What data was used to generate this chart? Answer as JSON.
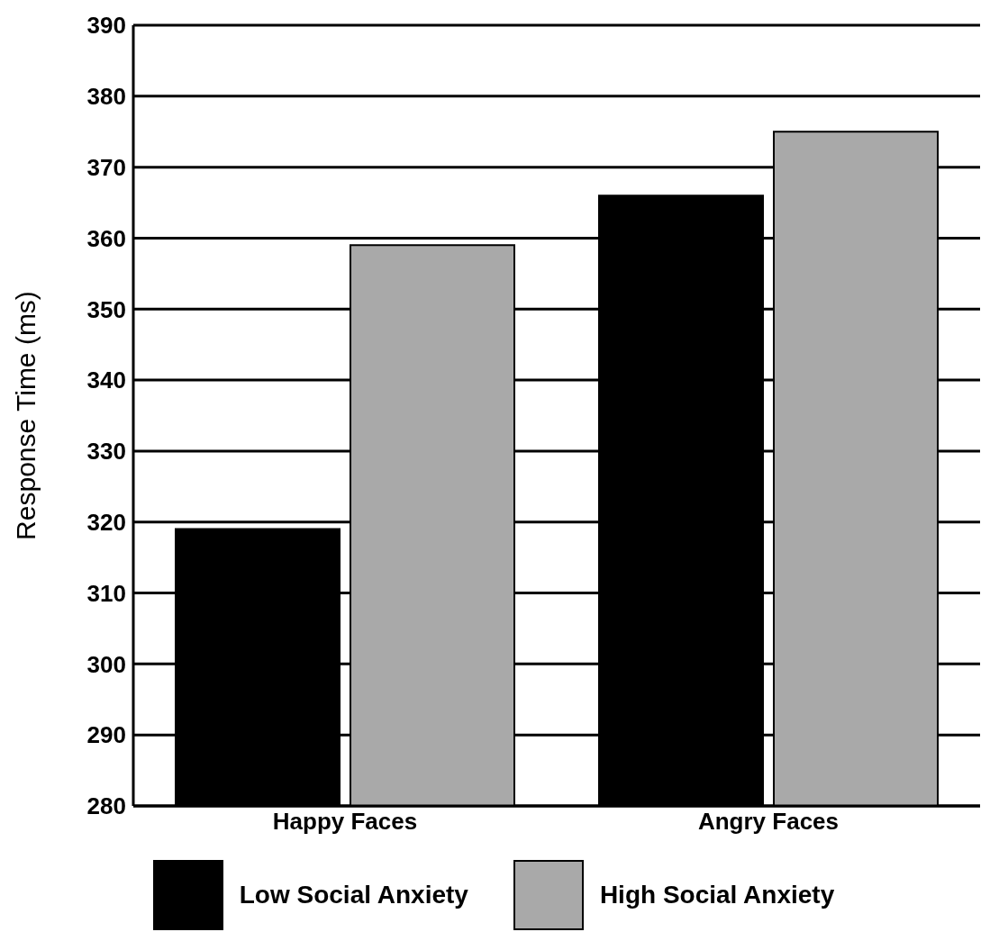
{
  "chart_data": {
    "type": "bar",
    "ylabel": "Response Time (ms)",
    "categories": [
      "Happy Faces",
      "Angry Faces"
    ],
    "series": [
      {
        "name": "Low Social Anxiety",
        "color": "#000000",
        "values": [
          319,
          366
        ]
      },
      {
        "name": "High Social Anxiety",
        "color": "#a9a9a9",
        "values": [
          359,
          375
        ]
      }
    ],
    "ylim": [
      280,
      390
    ],
    "yticks": [
      280,
      290,
      300,
      310,
      320,
      330,
      340,
      350,
      360,
      370,
      380,
      390
    ],
    "grid": "y",
    "legend": "bottom"
  }
}
